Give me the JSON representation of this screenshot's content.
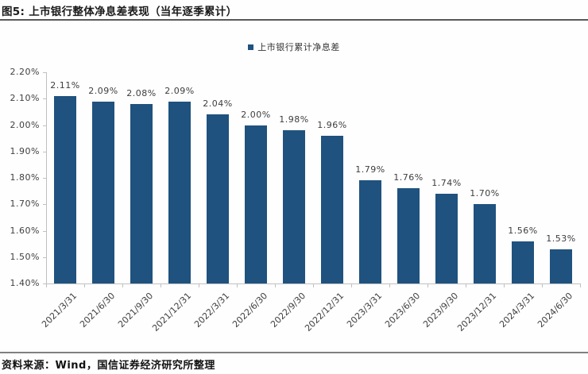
{
  "header": {
    "title": "图5: 上市银行整体净息差表现（当年逐季累计）"
  },
  "footer": {
    "source": "资料来源：Wind，国信证券经济研究所整理"
  },
  "colors": {
    "bar": "#1F527E",
    "axis_line": "#c0c0c0",
    "tick_text": "#404040",
    "title_rule": "#595959",
    "footer_rule": "#808080"
  },
  "chart_data": {
    "type": "bar",
    "title": "上市银行整体净息差表现（当年逐季累计）",
    "legend_label": "上市银行累计净息差",
    "legend_position": "top-center",
    "grid": false,
    "categories": [
      "2021/3/31",
      "2021/6/30",
      "2021/9/30",
      "2021/12/31",
      "2022/3/31",
      "2022/6/30",
      "2022/9/30",
      "2022/12/31",
      "2023/3/31",
      "2023/6/30",
      "2023/9/30",
      "2023/12/31",
      "2024/3/31",
      "2024/6/30"
    ],
    "values": [
      2.11,
      2.09,
      2.08,
      2.09,
      2.04,
      2.0,
      1.98,
      1.96,
      1.79,
      1.76,
      1.74,
      1.7,
      1.56,
      1.53
    ],
    "value_labels": [
      "2.11%",
      "2.09%",
      "2.08%",
      "2.09%",
      "2.04%",
      "2.00%",
      "1.98%",
      "1.96%",
      "1.79%",
      "1.76%",
      "1.74%",
      "1.70%",
      "1.56%",
      "1.53%"
    ],
    "ylim": [
      1.4,
      2.2
    ],
    "ytick_labels": [
      "2.20%",
      "2.10%",
      "2.00%",
      "1.90%",
      "1.80%",
      "1.70%",
      "1.60%",
      "1.50%",
      "1.40%"
    ],
    "ytick_values": [
      2.2,
      2.1,
      2.0,
      1.9,
      1.8,
      1.7,
      1.6,
      1.5,
      1.4
    ]
  }
}
